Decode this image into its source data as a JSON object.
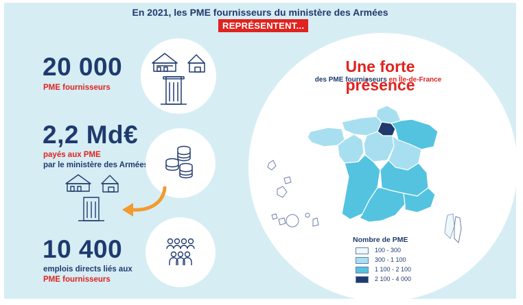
{
  "header": {
    "title": "En 2021, les PME fournisseurs du ministère des Armées",
    "tag": "REPRÉSENTENT..."
  },
  "stats": [
    {
      "value": "20 000",
      "line1": "PME fournisseurs"
    },
    {
      "value": "2,2 Md€",
      "line1": "payés aux PME",
      "line2": "par le ministère des Armées"
    },
    {
      "value": "10 400",
      "line1": "emplois directs liés aux",
      "line2": "PME fournisseurs"
    }
  ],
  "map": {
    "title": "Une forte présence",
    "subtitle_a": "des PME fournisseurs ",
    "subtitle_b": "en Île-de-France",
    "legend_title": "Nombre de PME",
    "legend": [
      {
        "label": "100 - 300",
        "color": "#eef8fc"
      },
      {
        "label": "300 - 1 100",
        "color": "#a8dff0"
      },
      {
        "label": "1 100 - 2 100",
        "color": "#54c3df"
      },
      {
        "label": "2 100 - 4 000",
        "color": "#1f3a6e"
      }
    ]
  },
  "colors": {
    "navy": "#1f3a6e",
    "red": "#e0231f",
    "background": "#d6edf4",
    "arrow": "#f39a2e"
  },
  "icons": [
    "buildings-icon",
    "coins-icon",
    "people-icon",
    "curved-arrow-icon",
    "france-map"
  ]
}
